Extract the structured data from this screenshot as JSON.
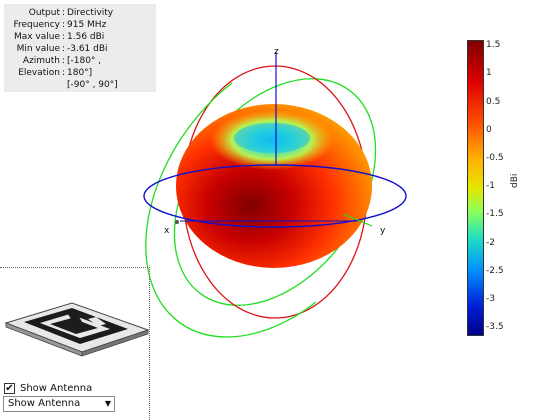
{
  "info": {
    "rows": [
      {
        "label": "Output",
        "value": "Directivity"
      },
      {
        "label": "Frequency",
        "value": "915 MHz"
      },
      {
        "label": "Max value",
        "value": "1.56 dBi"
      },
      {
        "label": "Min value",
        "value": "-3.61 dBi"
      },
      {
        "label": "Azimuth",
        "value": "[-180° ,"
      },
      {
        "label": "Elevation",
        "value": "180°]"
      },
      {
        "label": "",
        "value": "[-90° , 90°]"
      }
    ]
  },
  "axes": {
    "x": "x",
    "y": "y",
    "z": "z"
  },
  "colorbar": {
    "ticks": [
      "1.5",
      "1",
      "0.5",
      "0",
      "-0.5",
      "-1",
      "-1.5",
      "-2",
      "-2.5",
      "-3",
      "-3.5"
    ],
    "unit": "dBi"
  },
  "controls": {
    "show_antenna_checkbox": "Show Antenna",
    "show_antenna_checked": true,
    "dropdown_value": "Show Antenna"
  }
}
